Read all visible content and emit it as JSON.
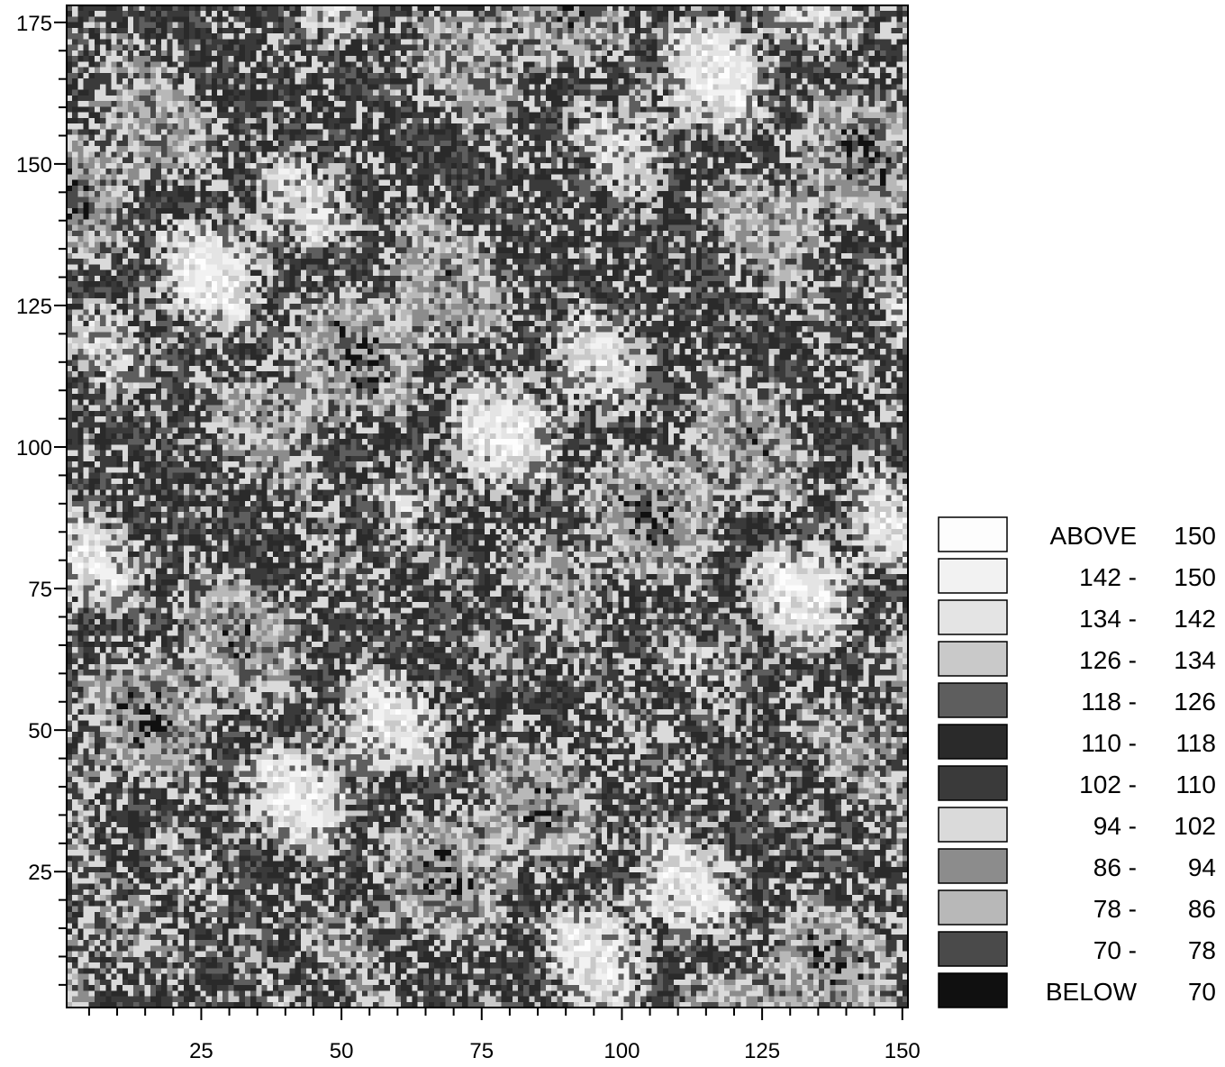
{
  "chart_data": {
    "type": "heatmap",
    "title": "",
    "xlabel": "",
    "ylabel": "",
    "xlim": [
      1,
      151
    ],
    "ylim": [
      1,
      178
    ],
    "x_ticks": [
      25,
      50,
      75,
      100,
      125,
      150
    ],
    "y_ticks": [
      25,
      50,
      75,
      100,
      125,
      150,
      175
    ],
    "grid": false,
    "legend_placement": "right",
    "color_scale": "grayscale",
    "legend": [
      {
        "label_left": "ABOVE",
        "label_right": "150",
        "color": "#fdfdfd"
      },
      {
        "label_left": "142 -",
        "label_right": "150",
        "color": "#f2f2f2"
      },
      {
        "label_left": "134 -",
        "label_right": "142",
        "color": "#e4e4e4"
      },
      {
        "label_left": "126 -",
        "label_right": "134",
        "color": "#c9c9c9"
      },
      {
        "label_left": "118 -",
        "label_right": "126",
        "color": "#5e5e5e"
      },
      {
        "label_left": "110 -",
        "label_right": "118",
        "color": "#2a2a2a"
      },
      {
        "label_left": "102 -",
        "label_right": "110",
        "color": "#3a3a3a"
      },
      {
        "label_left": "94 -",
        "label_right": "102",
        "color": "#dadada"
      },
      {
        "label_left": "86 -",
        "label_right": "94",
        "color": "#8c8c8c"
      },
      {
        "label_left": "78 -",
        "label_right": "86",
        "color": "#b8b8b8"
      },
      {
        "label_left": "70 -",
        "label_right": "78",
        "color": "#4a4a4a"
      },
      {
        "label_left": "BELOW",
        "label_right": "70",
        "color": "#101010"
      }
    ]
  }
}
